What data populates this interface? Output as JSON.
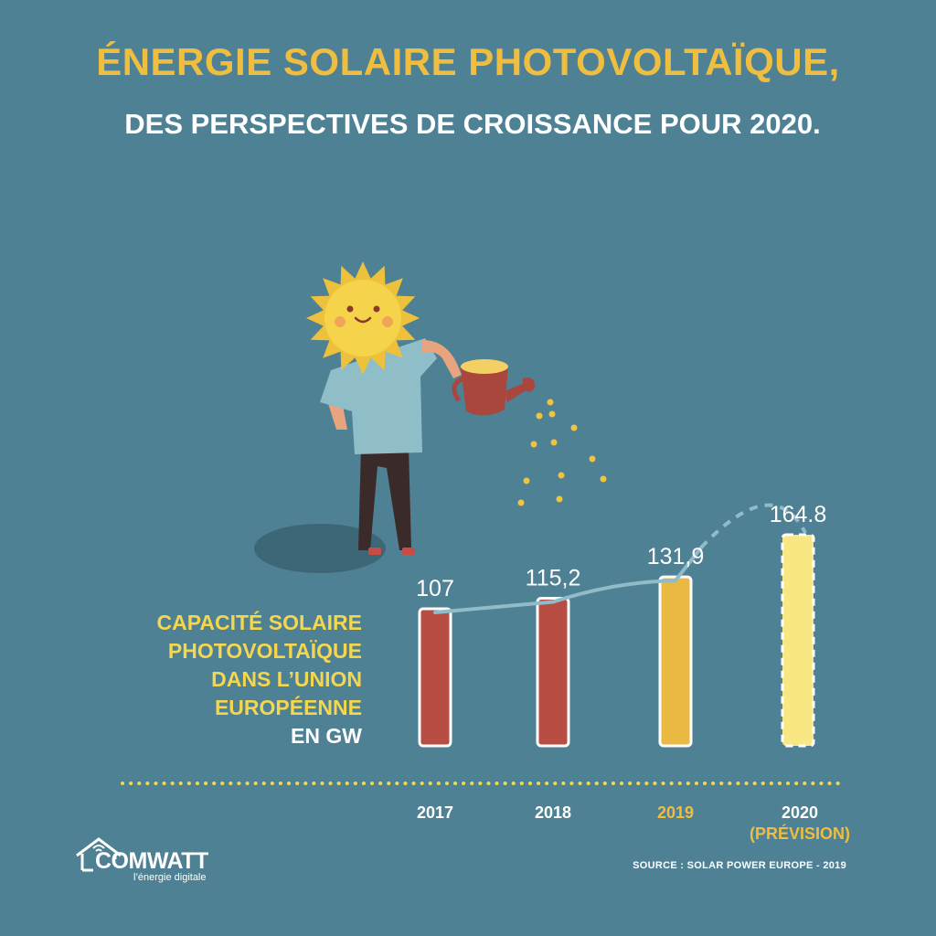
{
  "header": {
    "title": "ÉNERGIE SOLAIRE PHOTOVOLTAÏQUE,",
    "subtitle": "DES PERSPECTIVES DE CROISSANCE POUR 2020."
  },
  "side_label": {
    "lines": [
      "CAPACITÉ SOLAIRE",
      "PHOTOVOLTAÏQUE",
      "DANS L’UNION",
      "EUROPÉENNE"
    ],
    "unit": "EN GW"
  },
  "source": "SOURCE : SOLAR POWER EUROPE - 2019",
  "logo": {
    "name": "COMWATT",
    "tagline": "l’énergie digitale"
  },
  "colors": {
    "background": "#4e8194",
    "title": "#efbd3f",
    "label_yellow": "#f4d64f",
    "bar_past": "#b84e43",
    "bar_2019": "#e9b941",
    "bar_forecast": "#f9e784",
    "trend_line": "#8fbcc8"
  },
  "chart_data": {
    "type": "bar",
    "categories": [
      "2017",
      "2018",
      "2019",
      "2020"
    ],
    "category_sublabels": [
      "",
      "",
      "",
      "(PRÉVISION)"
    ],
    "values": [
      107,
      115.2,
      131.9,
      164.8
    ],
    "value_labels": [
      "107",
      "115,2",
      "131,9",
      "164.8"
    ],
    "forecast": [
      false,
      false,
      false,
      true
    ],
    "trend_line": true,
    "ylabel": "",
    "xlabel": ""
  }
}
